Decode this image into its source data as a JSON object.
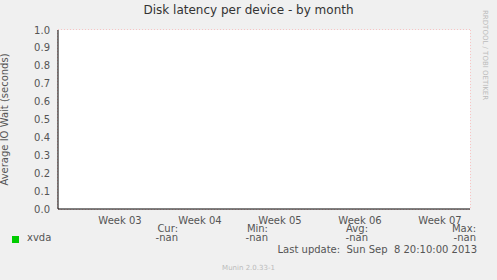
{
  "chart_data": {
    "type": "line",
    "title": "Disk latency per device - by month",
    "y_label": "Average IO Wait (seconds)",
    "categories": [
      "Week 03",
      "Week 04",
      "Week 05",
      "Week 06",
      "Week 07"
    ],
    "series": [
      {
        "name": "xvda",
        "color": "#00cc00",
        "values": [
          null,
          null,
          null,
          null,
          null
        ],
        "stats": [
          "-nan",
          "-nan",
          "-nan",
          "-nan"
        ]
      }
    ],
    "stat_labels": [
      "Cur:",
      "Min:",
      "Avg:",
      "Max:"
    ],
    "ylim": [
      0,
      1
    ],
    "yticks": [
      {
        "value": 0,
        "label": "0.0"
      },
      0.1,
      0.2,
      0.3,
      0.4,
      0.5,
      0.6,
      0.7,
      0.8,
      0.9,
      {
        "value": 1,
        "label": "1.0"
      }
    ],
    "grid": true,
    "last_update": "Last update:  Sun Sep  8 20:10:00 2013",
    "footer": "Munin 2.0.33-1",
    "watermark": "RRDTOOL / TOBI OETIKER"
  }
}
